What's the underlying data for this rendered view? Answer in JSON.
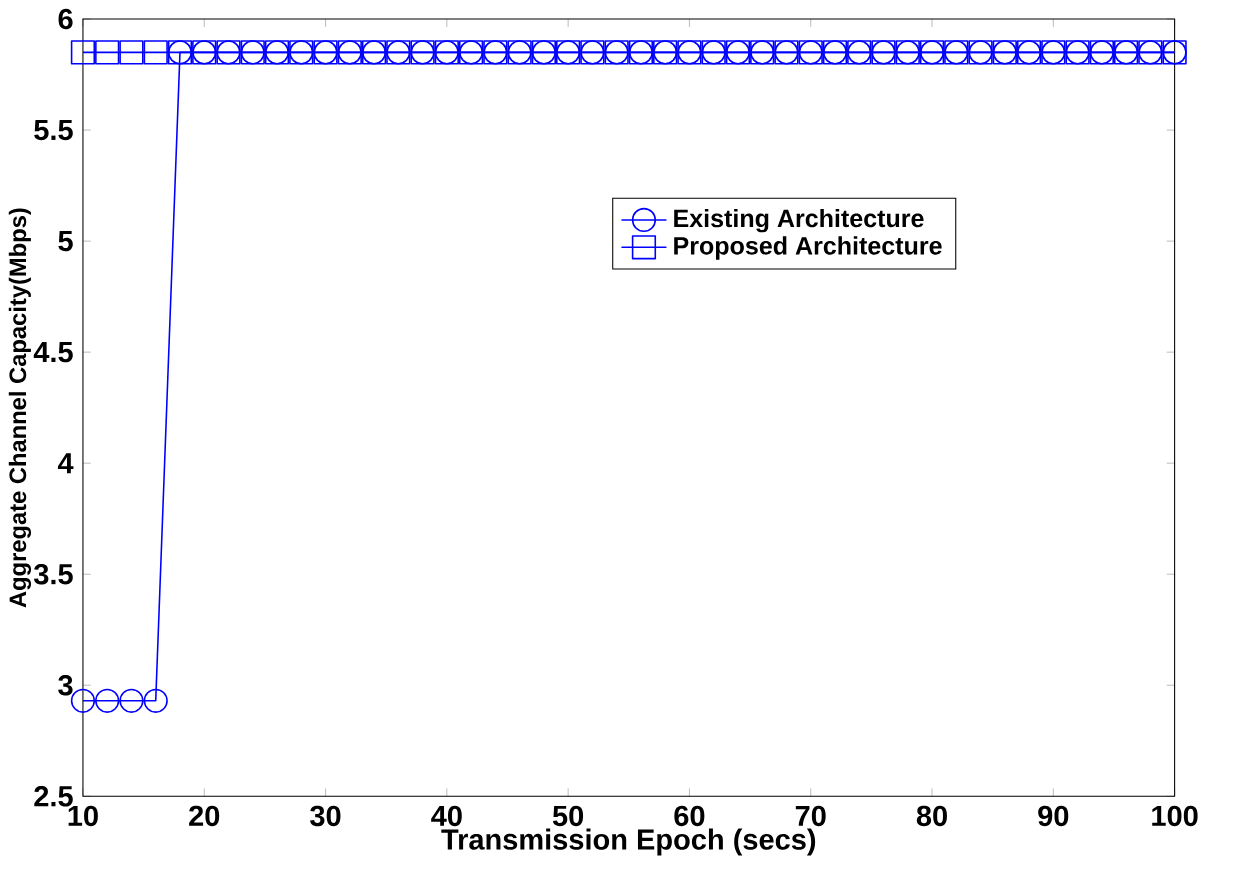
{
  "chart_data": {
    "type": "line",
    "xlabel": "Transmission Epoch (secs)",
    "ylabel": "Aggregate Channel Capacity(Mbps)",
    "x": [
      10,
      12,
      14,
      16,
      18,
      20,
      22,
      24,
      26,
      28,
      30,
      32,
      34,
      36,
      38,
      40,
      42,
      44,
      46,
      48,
      50,
      52,
      54,
      56,
      58,
      60,
      62,
      64,
      66,
      68,
      70,
      72,
      74,
      76,
      78,
      80,
      82,
      84,
      86,
      88,
      90,
      92,
      94,
      96,
      98,
      100
    ],
    "series": [
      {
        "name": "Existing Architecture",
        "color": "#0000ff",
        "marker": "circle",
        "values": [
          2.93,
          2.93,
          2.93,
          2.93,
          5.85,
          5.85,
          5.85,
          5.85,
          5.85,
          5.85,
          5.85,
          5.85,
          5.85,
          5.85,
          5.85,
          5.85,
          5.85,
          5.85,
          5.85,
          5.85,
          5.85,
          5.85,
          5.85,
          5.85,
          5.85,
          5.85,
          5.85,
          5.85,
          5.85,
          5.85,
          5.85,
          5.85,
          5.85,
          5.85,
          5.85,
          5.85,
          5.85,
          5.85,
          5.85,
          5.85,
          5.85,
          5.85,
          5.85,
          5.85,
          5.85,
          5.85
        ]
      },
      {
        "name": "Proposed Architecture",
        "color": "#0000ff",
        "marker": "square",
        "values": [
          5.85,
          5.85,
          5.85,
          5.85,
          5.85,
          5.85,
          5.85,
          5.85,
          5.85,
          5.85,
          5.85,
          5.85,
          5.85,
          5.85,
          5.85,
          5.85,
          5.85,
          5.85,
          5.85,
          5.85,
          5.85,
          5.85,
          5.85,
          5.85,
          5.85,
          5.85,
          5.85,
          5.85,
          5.85,
          5.85,
          5.85,
          5.85,
          5.85,
          5.85,
          5.85,
          5.85,
          5.85,
          5.85,
          5.85,
          5.85,
          5.85,
          5.85,
          5.85,
          5.85,
          5.85,
          5.85
        ]
      }
    ],
    "xlim": [
      10,
      100
    ],
    "xticks": [
      10,
      20,
      30,
      40,
      50,
      60,
      70,
      80,
      90,
      100
    ],
    "ylim": [
      2.5,
      6
    ],
    "yticks": [
      {
        "value": 2.5,
        "label": "2.5"
      },
      {
        "value": 3,
        "label": "3"
      },
      {
        "value": 3.5,
        "label": "3.5"
      },
      {
        "value": 4,
        "label": "4"
      },
      {
        "value": 4.5,
        "label": "4.5"
      },
      {
        "value": 5,
        "label": "5"
      },
      {
        "value": 5.5,
        "label": "5.5"
      },
      {
        "value": 6,
        "label": "6"
      }
    ],
    "grid": false,
    "legend": "top right",
    "line_style": "solid"
  }
}
